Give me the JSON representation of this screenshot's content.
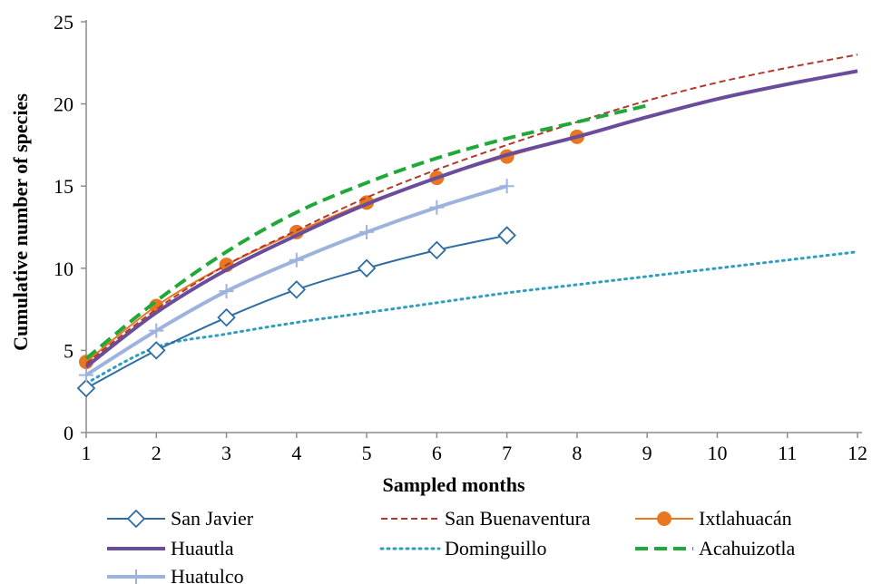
{
  "chart_data": {
    "type": "line",
    "xlabel": "Sampled months",
    "ylabel": "Cumulative number  of species",
    "xlim": [
      1,
      12
    ],
    "ylim": [
      0,
      25
    ],
    "x_ticks": [
      "1",
      "2",
      "3",
      "4",
      "5",
      "6",
      "7",
      "8",
      "9",
      "10",
      "11",
      "12"
    ],
    "y_ticks": [
      "0",
      "5",
      "10",
      "15",
      "20",
      "25"
    ],
    "grid": false,
    "legend_position": "bottom",
    "series": [
      {
        "key": "san_javier",
        "name": "San Javier",
        "color": "#2E6DA4",
        "style": "solid",
        "marker": "diamond",
        "x": [
          1,
          2,
          3,
          4,
          5,
          6,
          7
        ],
        "y": [
          2.7,
          5.0,
          7.0,
          8.7,
          10.0,
          11.1,
          12.0
        ]
      },
      {
        "key": "san_buenaventura",
        "name": "San Buenaventura",
        "color": "#B03A2E",
        "style": "dashed-fine",
        "marker": "none",
        "x": [
          1,
          2,
          3,
          4,
          5,
          6,
          7,
          8,
          9,
          10,
          11,
          12
        ],
        "y": [
          4.2,
          7.5,
          10.2,
          12.3,
          14.3,
          16.0,
          17.5,
          18.9,
          20.2,
          21.3,
          22.2,
          23.0
        ]
      },
      {
        "key": "ixtlahuacan",
        "name": "Ixtlahuacán",
        "color": "#E87722",
        "style": "solid",
        "marker": "circle",
        "x": [
          1,
          2,
          3,
          4,
          5,
          6,
          7,
          8
        ],
        "y": [
          4.3,
          7.7,
          10.2,
          12.2,
          14.0,
          15.5,
          16.8,
          18.0
        ]
      },
      {
        "key": "huautla",
        "name": "Huautla",
        "color": "#6A4C9C",
        "style": "solid-thick",
        "marker": "none",
        "x": [
          1,
          2,
          3,
          4,
          5,
          6,
          7,
          8,
          9,
          10,
          11,
          12
        ],
        "y": [
          4.0,
          7.3,
          9.9,
          12.0,
          13.9,
          15.5,
          16.9,
          18.0,
          19.2,
          20.3,
          21.2,
          22.0
        ]
      },
      {
        "key": "dominguillo",
        "name": "Dominguillo",
        "color": "#2E9EC0",
        "style": "dotted",
        "marker": "none",
        "x": [
          1,
          2,
          3,
          4,
          5,
          6,
          7,
          8,
          9,
          10,
          11,
          12
        ],
        "y": [
          3.0,
          5.2,
          6.0,
          6.7,
          7.3,
          7.9,
          8.5,
          9.0,
          9.5,
          10.0,
          10.5,
          11.0
        ]
      },
      {
        "key": "acahuizotla",
        "name": "Acahuizotla",
        "color": "#21A83A",
        "style": "dashed-thick",
        "marker": "none",
        "x": [
          1,
          2,
          3,
          4,
          5,
          6,
          7,
          8,
          9
        ],
        "y": [
          4.5,
          8.0,
          11.0,
          13.4,
          15.2,
          16.7,
          17.9,
          18.9,
          19.9
        ]
      },
      {
        "key": "huatulco",
        "name": "Huatulco",
        "color": "#9DB3DD",
        "style": "solid-thick",
        "marker": "plus",
        "x": [
          1,
          2,
          3,
          4,
          5,
          6,
          7
        ],
        "y": [
          3.5,
          6.2,
          8.6,
          10.5,
          12.2,
          13.7,
          15.0
        ]
      }
    ]
  }
}
